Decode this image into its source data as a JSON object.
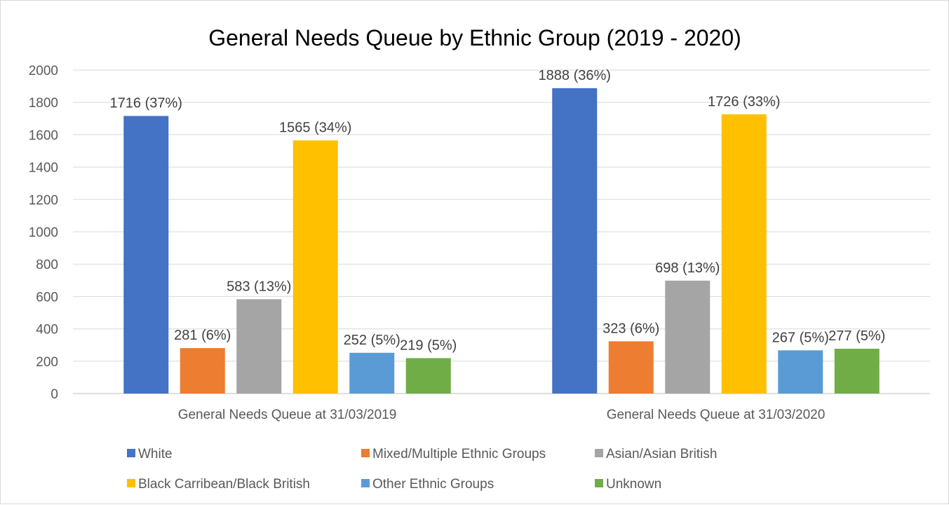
{
  "chart_data": {
    "type": "bar",
    "title": "General Needs Queue by Ethnic Group (2019 - 2020)",
    "xlabel": "",
    "ylabel": "",
    "ylim": [
      0,
      2000
    ],
    "yticks": [
      0,
      200,
      400,
      600,
      800,
      1000,
      1200,
      1400,
      1600,
      1800,
      2000
    ],
    "grid": true,
    "legend_position": "bottom",
    "categories": [
      "General Needs Queue at 31/03/2019",
      "General Needs Queue at 31/03/2020"
    ],
    "series": [
      {
        "name": "White",
        "color": "#4472c4",
        "values": [
          1716,
          1888
        ],
        "labels": [
          "1716 (37%)",
          "1888 (36%)"
        ]
      },
      {
        "name": "Mixed/Multiple Ethnic Groups",
        "color": "#ed7d31",
        "values": [
          281,
          323
        ],
        "labels": [
          "281 (6%)",
          "323 (6%)"
        ]
      },
      {
        "name": "Asian/Asian British",
        "color": "#a5a5a5",
        "values": [
          583,
          698
        ],
        "labels": [
          "583 (13%)",
          "698 (13%)"
        ]
      },
      {
        "name": "Black Carribean/Black British",
        "color": "#ffc000",
        "values": [
          1565,
          1726
        ],
        "labels": [
          "1565 (34%)",
          "1726 (33%)"
        ]
      },
      {
        "name": "Other Ethnic Groups",
        "color": "#5b9bd5",
        "values": [
          252,
          267
        ],
        "labels": [
          "252 (5%)",
          "267 (5%)"
        ]
      },
      {
        "name": "Unknown",
        "color": "#70ad47",
        "values": [
          219,
          277
        ],
        "labels": [
          "219 (5%)",
          "277 (5%)"
        ]
      }
    ]
  }
}
